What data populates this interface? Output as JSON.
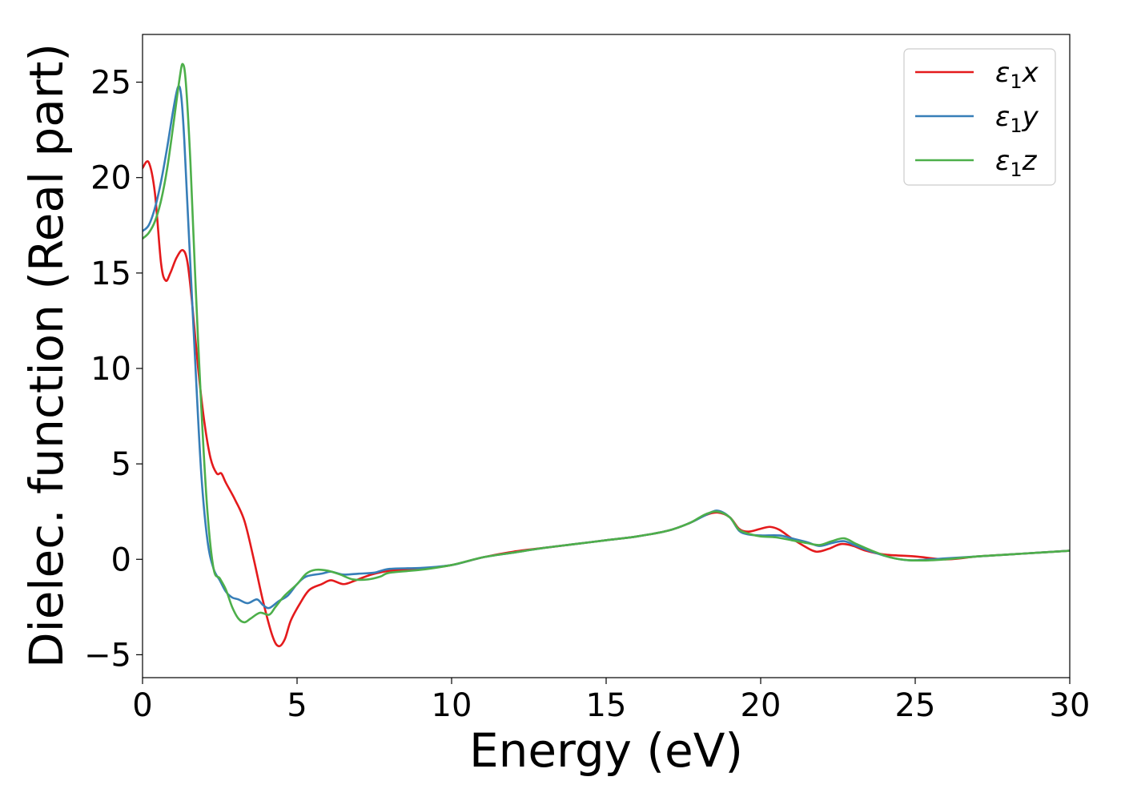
{
  "chart_data": {
    "type": "line",
    "xlabel": "Energy (eV)",
    "ylabel": "Dielec. function (Real part)",
    "xlim": [
      0,
      30
    ],
    "ylim": [
      -6.2,
      27.5
    ],
    "xticks": [
      0,
      5,
      10,
      15,
      20,
      25,
      30
    ],
    "yticks": [
      -5,
      0,
      5,
      10,
      15,
      20,
      25
    ],
    "xtick_labels": [
      "0",
      "5",
      "10",
      "15",
      "20",
      "25",
      "30"
    ],
    "ytick_labels": [
      "−5",
      "0",
      "5",
      "10",
      "15",
      "20",
      "25"
    ],
    "grid": false,
    "legend_position": "top-right",
    "series": [
      {
        "name": "ε1x",
        "name_base": "ε",
        "name_sub": "1",
        "name_suffix": "x",
        "color": "#e41a1c",
        "points": [
          [
            0,
            20.5
          ],
          [
            0.2,
            20.8
          ],
          [
            0.4,
            19.2
          ],
          [
            0.6,
            15.5
          ],
          [
            0.75,
            14.6
          ],
          [
            0.9,
            15.0
          ],
          [
            1.1,
            15.8
          ],
          [
            1.3,
            16.2
          ],
          [
            1.45,
            15.6
          ],
          [
            1.6,
            13.5
          ],
          [
            1.8,
            10.0
          ],
          [
            2.0,
            7.2
          ],
          [
            2.2,
            5.3
          ],
          [
            2.4,
            4.5
          ],
          [
            2.55,
            4.5
          ],
          [
            2.7,
            4.0
          ],
          [
            3.0,
            3.1
          ],
          [
            3.3,
            2.0
          ],
          [
            3.6,
            0.0
          ],
          [
            3.9,
            -2.2
          ],
          [
            4.2,
            -4.0
          ],
          [
            4.4,
            -4.55
          ],
          [
            4.6,
            -4.2
          ],
          [
            4.8,
            -3.2
          ],
          [
            5.1,
            -2.3
          ],
          [
            5.4,
            -1.6
          ],
          [
            5.8,
            -1.3
          ],
          [
            6.1,
            -1.1
          ],
          [
            6.5,
            -1.3
          ],
          [
            6.9,
            -1.1
          ],
          [
            7.4,
            -0.8
          ],
          [
            8.0,
            -0.6
          ],
          [
            9.0,
            -0.5
          ],
          [
            10.0,
            -0.3
          ],
          [
            11.0,
            0.1
          ],
          [
            12.0,
            0.4
          ],
          [
            13.0,
            0.6
          ],
          [
            14.0,
            0.8
          ],
          [
            15.0,
            1.0
          ],
          [
            16.0,
            1.2
          ],
          [
            17.0,
            1.5
          ],
          [
            17.7,
            1.9
          ],
          [
            18.2,
            2.3
          ],
          [
            18.6,
            2.45
          ],
          [
            19.0,
            2.2
          ],
          [
            19.3,
            1.6
          ],
          [
            19.6,
            1.45
          ],
          [
            20.0,
            1.6
          ],
          [
            20.3,
            1.7
          ],
          [
            20.6,
            1.55
          ],
          [
            21.0,
            1.1
          ],
          [
            21.4,
            0.7
          ],
          [
            21.8,
            0.4
          ],
          [
            22.2,
            0.55
          ],
          [
            22.6,
            0.8
          ],
          [
            23.0,
            0.7
          ],
          [
            23.4,
            0.45
          ],
          [
            24.0,
            0.25
          ],
          [
            25.0,
            0.15
          ],
          [
            26.0,
            0.0
          ],
          [
            27.0,
            0.15
          ],
          [
            28.0,
            0.25
          ],
          [
            29.0,
            0.35
          ],
          [
            30.0,
            0.45
          ]
        ]
      },
      {
        "name": "ε1y",
        "name_base": "ε",
        "name_sub": "1",
        "name_suffix": "y",
        "color": "#377eb8",
        "points": [
          [
            0,
            17.2
          ],
          [
            0.2,
            17.5
          ],
          [
            0.4,
            18.4
          ],
          [
            0.6,
            19.8
          ],
          [
            0.8,
            21.6
          ],
          [
            1.0,
            23.6
          ],
          [
            1.15,
            24.75
          ],
          [
            1.25,
            24.3
          ],
          [
            1.35,
            22.0
          ],
          [
            1.5,
            17.0
          ],
          [
            1.7,
            10.5
          ],
          [
            1.9,
            4.5
          ],
          [
            2.1,
            1.0
          ],
          [
            2.3,
            -0.5
          ],
          [
            2.5,
            -1.1
          ],
          [
            2.7,
            -1.7
          ],
          [
            2.9,
            -2.0
          ],
          [
            3.1,
            -2.1
          ],
          [
            3.4,
            -2.3
          ],
          [
            3.7,
            -2.1
          ],
          [
            3.9,
            -2.4
          ],
          [
            4.1,
            -2.55
          ],
          [
            4.4,
            -2.2
          ],
          [
            4.7,
            -1.9
          ],
          [
            5.0,
            -1.3
          ],
          [
            5.3,
            -0.9
          ],
          [
            5.8,
            -0.75
          ],
          [
            6.1,
            -0.65
          ],
          [
            6.5,
            -0.8
          ],
          [
            7.0,
            -0.75
          ],
          [
            7.5,
            -0.7
          ],
          [
            8.0,
            -0.5
          ],
          [
            9.0,
            -0.45
          ],
          [
            10.0,
            -0.3
          ],
          [
            11.0,
            0.1
          ],
          [
            12.0,
            0.35
          ],
          [
            13.0,
            0.6
          ],
          [
            14.0,
            0.8
          ],
          [
            15.0,
            1.0
          ],
          [
            16.0,
            1.2
          ],
          [
            17.0,
            1.5
          ],
          [
            17.7,
            1.9
          ],
          [
            18.2,
            2.3
          ],
          [
            18.6,
            2.55
          ],
          [
            19.0,
            2.2
          ],
          [
            19.3,
            1.5
          ],
          [
            19.6,
            1.3
          ],
          [
            20.0,
            1.25
          ],
          [
            20.6,
            1.25
          ],
          [
            21.0,
            1.1
          ],
          [
            21.5,
            0.9
          ],
          [
            21.9,
            0.7
          ],
          [
            22.3,
            0.85
          ],
          [
            22.7,
            0.95
          ],
          [
            23.1,
            0.7
          ],
          [
            23.6,
            0.4
          ],
          [
            24.2,
            0.1
          ],
          [
            24.8,
            -0.05
          ],
          [
            25.5,
            0.0
          ],
          [
            26.0,
            0.05
          ],
          [
            27.0,
            0.15
          ],
          [
            28.0,
            0.25
          ],
          [
            29.0,
            0.35
          ],
          [
            30.0,
            0.45
          ]
        ]
      },
      {
        "name": "ε1z",
        "name_base": "ε",
        "name_sub": "1",
        "name_suffix": "z",
        "color": "#4daf4a",
        "points": [
          [
            0,
            16.8
          ],
          [
            0.2,
            17.1
          ],
          [
            0.4,
            17.7
          ],
          [
            0.6,
            18.8
          ],
          [
            0.8,
            20.5
          ],
          [
            1.0,
            22.8
          ],
          [
            1.2,
            25.2
          ],
          [
            1.3,
            25.95
          ],
          [
            1.4,
            25.0
          ],
          [
            1.55,
            20.8
          ],
          [
            1.7,
            15.0
          ],
          [
            1.9,
            8.0
          ],
          [
            2.1,
            2.5
          ],
          [
            2.3,
            -0.5
          ],
          [
            2.5,
            -1.0
          ],
          [
            2.7,
            -1.6
          ],
          [
            2.9,
            -2.5
          ],
          [
            3.1,
            -3.1
          ],
          [
            3.3,
            -3.3
          ],
          [
            3.5,
            -3.1
          ],
          [
            3.8,
            -2.8
          ],
          [
            4.1,
            -2.9
          ],
          [
            4.3,
            -2.5
          ],
          [
            4.6,
            -1.9
          ],
          [
            5.0,
            -1.3
          ],
          [
            5.3,
            -0.75
          ],
          [
            5.6,
            -0.55
          ],
          [
            6.0,
            -0.6
          ],
          [
            6.4,
            -0.8
          ],
          [
            6.8,
            -1.05
          ],
          [
            7.3,
            -1.05
          ],
          [
            7.7,
            -0.9
          ],
          [
            8.0,
            -0.7
          ],
          [
            9.0,
            -0.55
          ],
          [
            10.0,
            -0.3
          ],
          [
            11.0,
            0.1
          ],
          [
            12.0,
            0.35
          ],
          [
            13.0,
            0.6
          ],
          [
            14.0,
            0.8
          ],
          [
            15.0,
            1.0
          ],
          [
            16.0,
            1.2
          ],
          [
            17.0,
            1.5
          ],
          [
            17.7,
            1.9
          ],
          [
            18.2,
            2.35
          ],
          [
            18.6,
            2.5
          ],
          [
            19.0,
            2.2
          ],
          [
            19.3,
            1.55
          ],
          [
            19.7,
            1.3
          ],
          [
            20.0,
            1.2
          ],
          [
            20.5,
            1.15
          ],
          [
            21.0,
            1.0
          ],
          [
            21.5,
            0.85
          ],
          [
            21.9,
            0.75
          ],
          [
            22.3,
            0.95
          ],
          [
            22.7,
            1.1
          ],
          [
            23.1,
            0.8
          ],
          [
            23.6,
            0.45
          ],
          [
            24.2,
            0.1
          ],
          [
            24.8,
            -0.05
          ],
          [
            25.5,
            -0.05
          ],
          [
            26.0,
            0.0
          ],
          [
            27.0,
            0.15
          ],
          [
            28.0,
            0.25
          ],
          [
            29.0,
            0.35
          ],
          [
            30.0,
            0.45
          ]
        ]
      }
    ]
  }
}
